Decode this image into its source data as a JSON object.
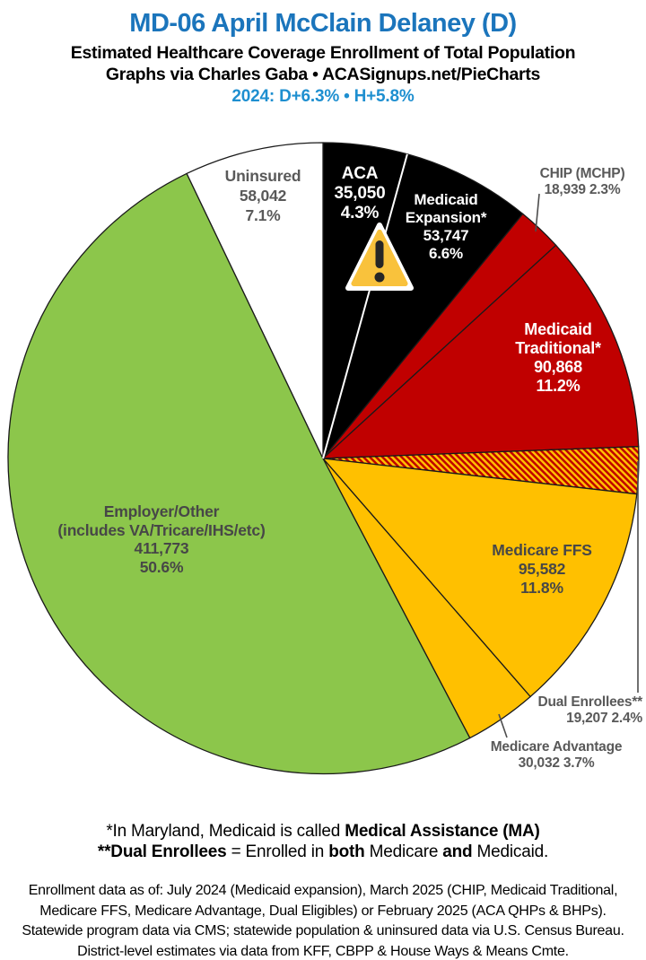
{
  "header": {
    "title": "MD-06 April McClain Delaney (D)",
    "subtitle1": "Estimated Healthcare Coverage Enrollment of Total Population",
    "subtitle2": "Graphs via Charles Gaba   •   ACASignups.net/PieCharts",
    "stats_line": "2024: D+6.3%  •  H+5.8%"
  },
  "colors": {
    "title_blue": "#1B75BC",
    "stats_blue": "#1E8FD0",
    "slice_black": "#000000",
    "slice_red": "#C00000",
    "slice_gold": "#FFC000",
    "slice_green": "#8CC64B",
    "slice_white": "#FFFFFF",
    "outline": "#1A1A1A",
    "label_gray": "#595959",
    "label_dark": "#474747",
    "leader_line": "#4D4D4D",
    "warning_fill": "#F9C23C",
    "warning_mark": "#262626"
  },
  "icons": {
    "warning": "⚠"
  },
  "chart_data": {
    "type": "pie",
    "title": "Estimated Healthcare Coverage Enrollment of Total Population",
    "start_angle_deg": 0,
    "direction": "clockwise",
    "legend_position": "labels-on-chart",
    "slices": [
      {
        "id": "aca",
        "label": "ACA",
        "value": 35050,
        "pct": 4.3,
        "fill": "slice_black",
        "text": "white",
        "label_lines": [
          "ACA",
          "35,050",
          "4.3%"
        ],
        "label_placement": "inside"
      },
      {
        "id": "medicaid-expansion",
        "label": "Medicaid Expansion*",
        "value": 53747,
        "pct": 6.6,
        "fill": "slice_black",
        "text": "white",
        "label_lines": [
          "Medicaid",
          "Expansion*",
          "53,747",
          "6.6%"
        ],
        "label_placement": "inside"
      },
      {
        "id": "chip",
        "label": "CHIP (MCHP)",
        "value": 18939,
        "pct": 2.3,
        "fill": "slice_red",
        "text": "gray",
        "label_lines": [
          "CHIP (MCHP)",
          "18,939 2.3%"
        ],
        "label_placement": "outside"
      },
      {
        "id": "medicaid-traditional",
        "label": "Medicaid Traditional*",
        "value": 90868,
        "pct": 11.2,
        "fill": "slice_red",
        "text": "white",
        "label_lines": [
          "Medicaid",
          "Traditional*",
          "90,868",
          "11.2%"
        ],
        "label_placement": "inside"
      },
      {
        "id": "dual",
        "label": "Dual Enrollees**",
        "value": 19207,
        "pct": 2.4,
        "fill": "hatch",
        "text": "gray",
        "label_lines": [
          "Dual Enrollees**",
          "19,207 2.4%"
        ],
        "label_placement": "outside"
      },
      {
        "id": "medicare-ffs",
        "label": "Medicare FFS",
        "value": 95582,
        "pct": 11.8,
        "fill": "slice_gold",
        "text": "dark",
        "label_lines": [
          "Medicare FFS",
          "95,582",
          "11.8%"
        ],
        "label_placement": "inside"
      },
      {
        "id": "medicare-advantage",
        "label": "Medicare Advantage",
        "value": 30032,
        "pct": 3.7,
        "fill": "slice_gold",
        "text": "gray",
        "label_lines": [
          "Medicare Advantage",
          "30,032 3.7%"
        ],
        "label_placement": "outside"
      },
      {
        "id": "employer",
        "label": "Employer/Other (includes VA/Tricare/IHS/etc)",
        "value": 411773,
        "pct": 50.6,
        "fill": "slice_green",
        "text": "dark",
        "label_lines": [
          "Employer/Other",
          "(includes VA/Tricare/IHS/etc)",
          "411,773",
          "50.6%"
        ],
        "label_placement": "inside"
      },
      {
        "id": "uninsured",
        "label": "Uninsured",
        "value": 58042,
        "pct": 7.1,
        "fill": "slice_white",
        "text": "gray",
        "label_lines": [
          "Uninsured",
          "58,042",
          "7.1%"
        ],
        "label_placement": "inside"
      }
    ]
  },
  "footnotes": {
    "line1": [
      {
        "t": "*In Maryland, Medicaid is called ",
        "b": false
      },
      {
        "t": "Medical Assistance (MA)",
        "b": true
      }
    ],
    "line2": [
      {
        "t": "**Dual Enrollees",
        "b": true
      },
      {
        "t": " = Enrolled in ",
        "b": false
      },
      {
        "t": "both",
        "b": true
      },
      {
        "t": " Medicare ",
        "b": false
      },
      {
        "t": "and",
        "b": true
      },
      {
        "t": " Medicaid.",
        "b": false
      }
    ]
  },
  "source": {
    "lines": [
      "Enrollment data as of: July 2024 (Medicaid expansion), March 2025 (CHIP, Medicaid Traditional,",
      "Medicare FFS, Medicare Advantage, Dual Eligibles) or February 2025 (ACA QHPs & BHPs).",
      "Statewide program data via CMS; statewide population & uninsured data via U.S. Census Bureau.",
      "District-level estimates via data from KFF, CBPP & House Ways & Means Cmte."
    ]
  }
}
